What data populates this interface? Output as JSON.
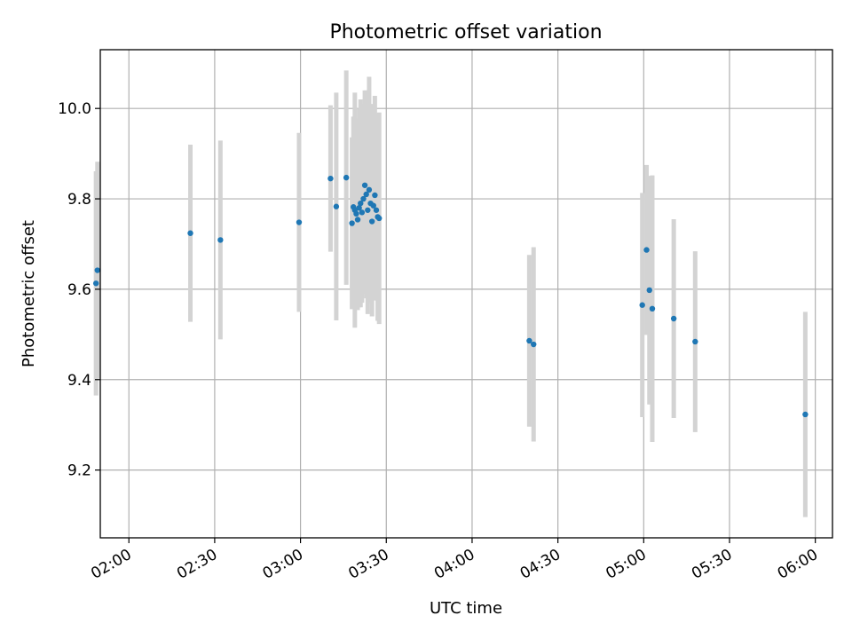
{
  "chart_data": {
    "type": "scatter",
    "title": "Photometric offset variation",
    "xlabel": "UTC time",
    "ylabel": "Photometric offset",
    "x_ticks": [
      "02:00",
      "02:30",
      "03:00",
      "03:30",
      "04:00",
      "04:30",
      "05:00",
      "05:30",
      "06:00"
    ],
    "y_ticks": [
      "9.2",
      "9.4",
      "9.6",
      "9.8",
      "10.0"
    ],
    "xlim": [
      "01:50",
      "06:06"
    ],
    "ylim": [
      9.05,
      10.13
    ],
    "grid": true,
    "colors": {
      "points": "#1f77b4",
      "errorbars": "#d3d3d3"
    },
    "points": [
      {
        "t": "01:48:30",
        "y": 9.613,
        "err": 0.248
      },
      {
        "t": "01:49:00",
        "y": 9.642,
        "err": 0.24
      },
      {
        "t": "02:21:30",
        "y": 9.724,
        "err": 0.196
      },
      {
        "t": "02:32:00",
        "y": 9.709,
        "err": 0.22
      },
      {
        "t": "02:59:30",
        "y": 9.748,
        "err": 0.198
      },
      {
        "t": "03:10:30",
        "y": 9.845,
        "err": 0.162
      },
      {
        "t": "03:12:30",
        "y": 9.783,
        "err": 0.252
      },
      {
        "t": "03:16:00",
        "y": 9.847,
        "err": 0.237
      },
      {
        "t": "03:18:00",
        "y": 9.746,
        "err": 0.19
      },
      {
        "t": "03:18:30",
        "y": 9.782,
        "err": 0.2
      },
      {
        "t": "03:19:00",
        "y": 9.775,
        "err": 0.26
      },
      {
        "t": "03:19:30",
        "y": 9.767,
        "err": 0.21
      },
      {
        "t": "03:20:00",
        "y": 9.754,
        "err": 0.2
      },
      {
        "t": "03:20:30",
        "y": 9.78,
        "err": 0.22
      },
      {
        "t": "03:21:00",
        "y": 9.79,
        "err": 0.23
      },
      {
        "t": "03:21:30",
        "y": 9.77,
        "err": 0.2
      },
      {
        "t": "03:22:00",
        "y": 9.8,
        "err": 0.21
      },
      {
        "t": "03:22:30",
        "y": 9.83,
        "err": 0.21
      },
      {
        "t": "03:23:00",
        "y": 9.81,
        "err": 0.23
      },
      {
        "t": "03:23:30",
        "y": 9.775,
        "err": 0.23
      },
      {
        "t": "03:24:00",
        "y": 9.82,
        "err": 0.25
      },
      {
        "t": "03:24:30",
        "y": 9.79,
        "err": 0.22
      },
      {
        "t": "03:25:00",
        "y": 9.75,
        "err": 0.21
      },
      {
        "t": "03:25:30",
        "y": 9.785,
        "err": 0.2
      },
      {
        "t": "03:26:00",
        "y": 9.808,
        "err": 0.22
      },
      {
        "t": "03:26:30",
        "y": 9.775,
        "err": 0.2
      },
      {
        "t": "03:27:00",
        "y": 9.76,
        "err": 0.23
      },
      {
        "t": "03:27:30",
        "y": 9.757,
        "err": 0.234
      },
      {
        "t": "04:20:00",
        "y": 9.486,
        "err": 0.19
      },
      {
        "t": "04:21:30",
        "y": 9.478,
        "err": 0.215
      },
      {
        "t": "04:59:30",
        "y": 9.565,
        "err": 0.248
      },
      {
        "t": "05:01:00",
        "y": 9.687,
        "err": 0.188
      },
      {
        "t": "05:02:00",
        "y": 9.598,
        "err": 0.253
      },
      {
        "t": "05:03:00",
        "y": 9.557,
        "err": 0.295
      },
      {
        "t": "05:10:30",
        "y": 9.535,
        "err": 0.22
      },
      {
        "t": "05:18:00",
        "y": 9.484,
        "err": 0.2
      },
      {
        "t": "05:56:30",
        "y": 9.323,
        "err": 0.227
      }
    ]
  }
}
